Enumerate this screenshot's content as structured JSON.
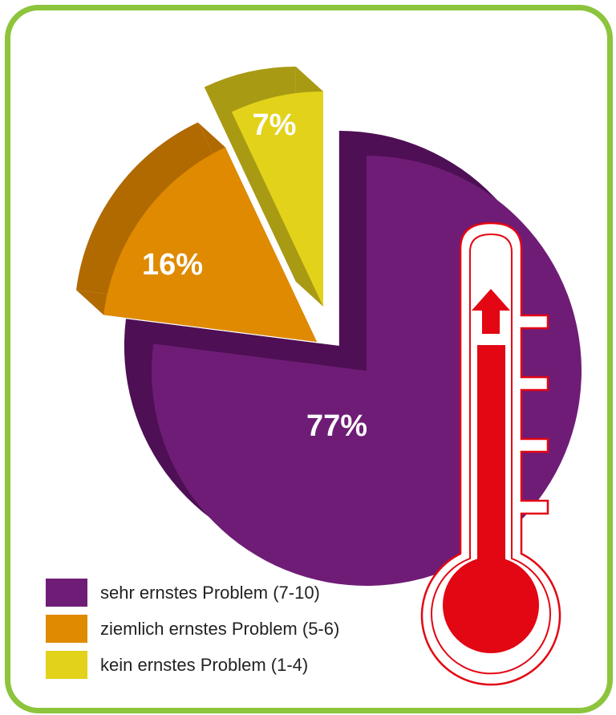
{
  "chart_data": {
    "type": "pie",
    "title": "",
    "series": [
      {
        "name": "sehr ernstes Problem (7-10)",
        "value": 77,
        "label": "77%",
        "color": "#6f1c77",
        "side_color": "#4e0f55"
      },
      {
        "name": "ziemlich ernstes Problem (5-6)",
        "value": 16,
        "label": "16%",
        "color": "#df8a00",
        "side_color": "#b06a00"
      },
      {
        "name": "kein ernstes Problem (1-4)",
        "value": 7,
        "label": "7%",
        "color": "#e2d21a",
        "side_color": "#a99a14"
      }
    ],
    "legend": {
      "placement": "bottom-left"
    }
  },
  "decorations": {
    "frame_color": "#8cc43c",
    "thermometer_icon": "thermometer-icon",
    "thermometer_color": "#e30613"
  }
}
